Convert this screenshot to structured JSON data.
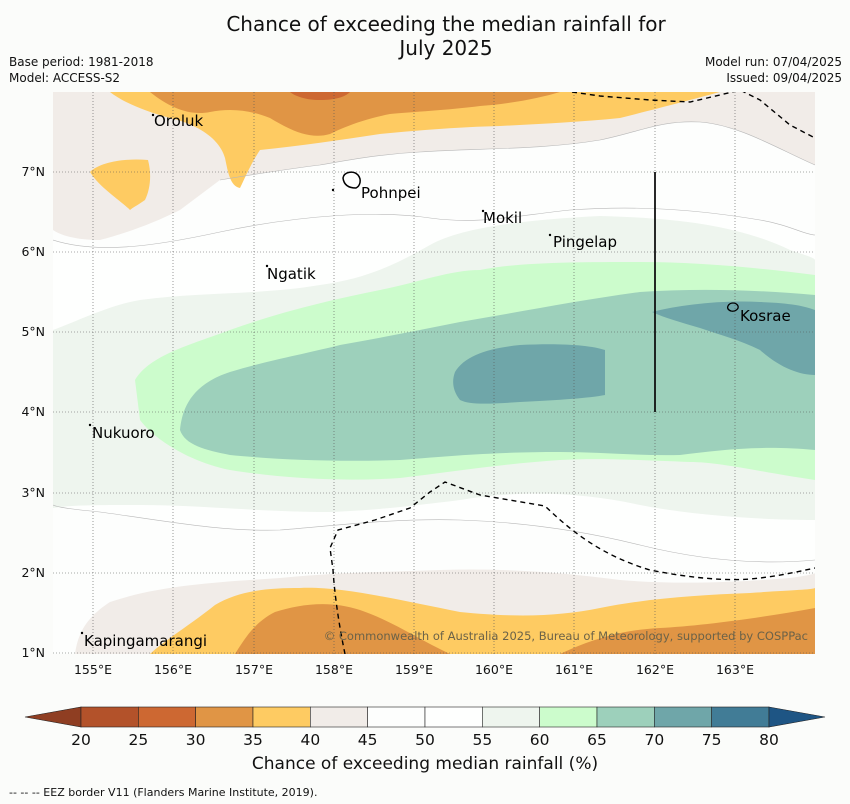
{
  "title_line1": "Chance of exceeding the median rainfall for",
  "title_line2": "July 2025",
  "meta_left": [
    "Base period: 1981-2018",
    "Model: ACCESS-S2"
  ],
  "meta_right": [
    "Model run: 07/04/2025",
    "Issued: 09/04/2025"
  ],
  "map": {
    "lon_labels": [
      "155°E",
      "156°E",
      "157°E",
      "158°E",
      "159°E",
      "160°E",
      "161°E",
      "162°E",
      "163°E"
    ],
    "lat_labels": [
      "7°N",
      "6°N",
      "5°N",
      "4°N",
      "3°N",
      "2°N",
      "1°N"
    ],
    "places": [
      "Oroluk",
      "Pohnpei",
      "Mokil",
      "Pingelap",
      "Ngatik",
      "Kosrae",
      "Nukuoro",
      "Kapingamarangi"
    ],
    "copyright": "© Commonwealth of Australia 2025, Bureau of Meteorology, supported by COSPPac"
  },
  "colorbar": {
    "ticks": [
      "20",
      "25",
      "30",
      "35",
      "40",
      "45",
      "50",
      "55",
      "60",
      "65",
      "70",
      "75",
      "80"
    ],
    "colors": [
      "#b3522a",
      "#cd6832",
      "#e09545",
      "#fecb62",
      "#f1ece8",
      "#fdfefd",
      "#fefffe",
      "#eef5ee",
      "#ccfccc",
      "#9dd0bb",
      "#6fa6a9",
      "#417c96"
    ],
    "under_color": "#8f3e22",
    "over_color": "#1e5584",
    "label": "Chance of exceeding median rainfall (%)"
  },
  "footer": "--  --  -- EEZ border V11 (Flanders Marine Institute, 2019)."
}
